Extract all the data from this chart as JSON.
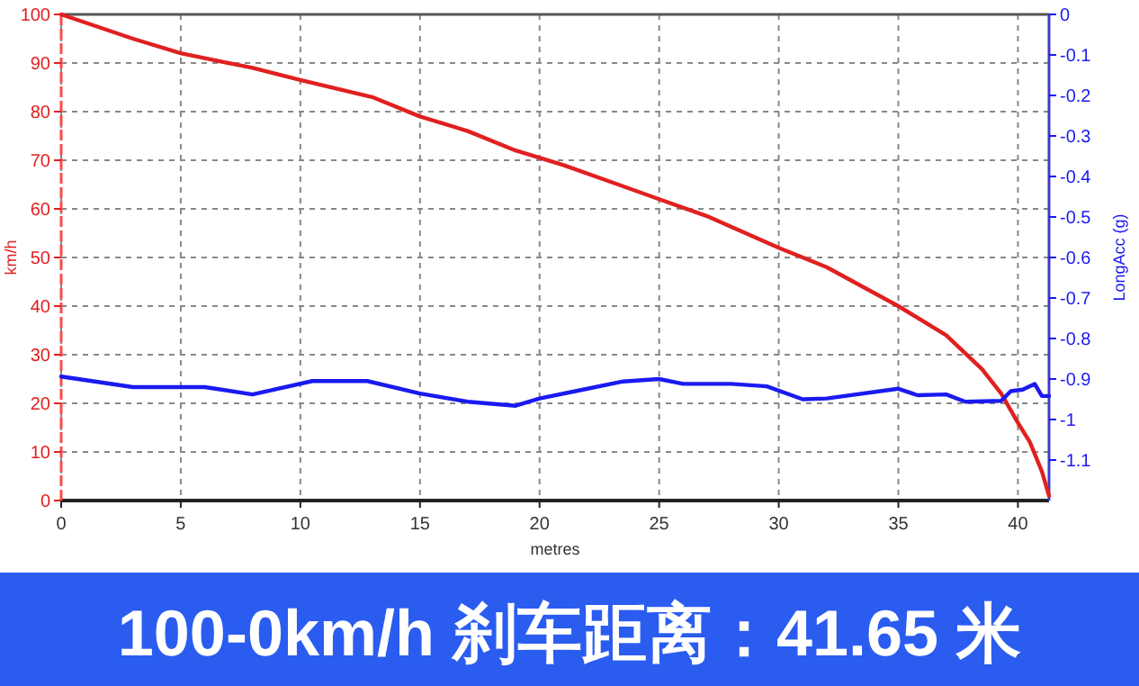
{
  "chart_data": {
    "type": "line",
    "title": "100-0km/h 刹车距离：41.65 米",
    "xlabel": "metres",
    "ylabel": "km/h",
    "y2label": "LongAcc (g)",
    "xlim": [
      0,
      41.3
    ],
    "xticks": [
      0,
      5,
      10,
      15,
      20,
      25,
      30,
      35,
      40
    ],
    "ylim": [
      0,
      100
    ],
    "yticks": [
      0,
      10,
      20,
      30,
      40,
      50,
      60,
      70,
      80,
      90,
      100
    ],
    "y2lim": [
      -1.2,
      0
    ],
    "y2ticks": [
      0,
      -0.1,
      -0.2,
      -0.3,
      -0.4,
      -0.5,
      -0.6,
      -0.7,
      -0.8,
      -0.9,
      -1,
      -1.1
    ],
    "grid": true,
    "marker": "none",
    "line_style": "solid",
    "series": [
      {
        "color": "#e02020",
        "x": [
          0,
          3,
          5,
          8,
          10,
          13,
          15,
          17,
          19,
          21,
          23,
          25,
          27,
          30,
          32,
          35,
          37,
          38.5,
          39.3,
          40,
          40.5,
          41,
          41.3
        ],
        "values": [
          100,
          95,
          92,
          89,
          86.5,
          83,
          79,
          76,
          72,
          69,
          65.5,
          62,
          58.5,
          52,
          48,
          40,
          34,
          27,
          22,
          16,
          12,
          6,
          1
        ]
      },
      {
        "color": "#1a1af0",
        "axis": "y2",
        "x": [
          0,
          3,
          6,
          8,
          10.5,
          12.8,
          15,
          17,
          19,
          20,
          21.5,
          23.5,
          25,
          26,
          28,
          29.5,
          31,
          32,
          35,
          35.8,
          37,
          37.8,
          39.3,
          39.7,
          40.2,
          40.7,
          41,
          41.3
        ],
        "values": [
          -0.894,
          -0.92,
          -0.92,
          -0.938,
          -0.905,
          -0.905,
          -0.936,
          -0.956,
          -0.966,
          -0.948,
          -0.93,
          -0.906,
          -0.9,
          -0.912,
          -0.912,
          -0.918,
          -0.95,
          -0.948,
          -0.924,
          -0.94,
          -0.938,
          -0.956,
          -0.954,
          -0.93,
          -0.926,
          -0.912,
          -0.942,
          -0.942
        ]
      }
    ]
  }
}
